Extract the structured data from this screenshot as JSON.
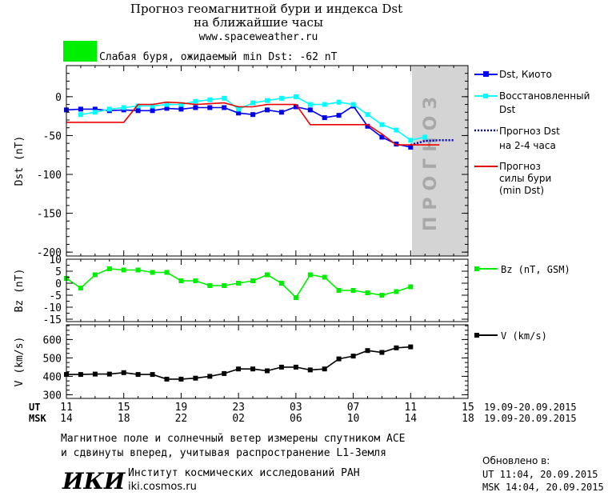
{
  "header": {
    "title_line1": "Прогноз геомагнитной бури и индекса Dst",
    "title_line2": "на ближайшие часы",
    "url": "www.spaceweather.ru",
    "status_text": "Слабая буря, ожидаемый min Dst: -62 nT",
    "status_color": "#00ee00"
  },
  "colors": {
    "dst_kyoto": "#0000ee",
    "dst_restored": "#00ffff",
    "forecast_dst": "#0000cc",
    "storm_forecast": "#ee0000",
    "bz": "#00ee00",
    "v": "#000000",
    "forecast_band": "#d4d4d4"
  },
  "chart_data": [
    {
      "type": "line",
      "panel": "dst",
      "ylabel": "Dst (nT)",
      "ylim": [
        -205,
        40
      ],
      "yticks": [
        0,
        -50,
        -100,
        -150,
        -200
      ],
      "ytick_labels": [
        "0",
        "-50",
        "-100",
        "-150",
        "-200"
      ],
      "x_unit": "hours from 11:00 UT 19.09.2015",
      "xlim": [
        0,
        28
      ],
      "forecast_region_label": "ПРОГНОЗ",
      "forecast_region_x": [
        24,
        28
      ],
      "series": [
        {
          "name": "Dst, Киото",
          "style": "line-square",
          "color": "#0000ee",
          "x": [
            0,
            1,
            2,
            3,
            4,
            5,
            6,
            7,
            8,
            9,
            10,
            11,
            12,
            13,
            14,
            15,
            16,
            17,
            18,
            19,
            20,
            21,
            22,
            23,
            24
          ],
          "y": [
            -17,
            -16,
            -16,
            -18,
            -17,
            -18,
            -18,
            -15,
            -16,
            -14,
            -14,
            -14,
            -21,
            -23,
            -17,
            -20,
            -13,
            -17,
            -27,
            -24,
            -12,
            -38,
            -52,
            -61,
            -65
          ]
        },
        {
          "name": "Восстановленный Dst",
          "style": "line-square",
          "color": "#00ffff",
          "x": [
            1,
            2,
            3,
            4,
            5,
            6,
            7,
            8,
            9,
            10,
            11,
            12,
            13,
            14,
            15,
            16,
            17,
            18,
            19,
            20,
            21,
            22,
            23,
            24,
            25
          ],
          "y": [
            -23,
            -20,
            -16,
            -14,
            -12,
            -12,
            -10,
            -10,
            -6,
            -4,
            -2,
            -16,
            -8,
            -5,
            -2,
            0,
            -10,
            -10,
            -7,
            -10,
            -23,
            -36,
            -43,
            -56,
            -52
          ]
        },
        {
          "name": "Прогноз Dst на 2-4 часа",
          "style": "dotted",
          "color": "#0000cc",
          "x": [
            24,
            25,
            26,
            27
          ],
          "y": [
            -62,
            -57,
            -56,
            -56
          ]
        },
        {
          "name": "Прогноз силы бури (min Dst)",
          "style": "step",
          "color": "#ee0000",
          "x": [
            0,
            4,
            5,
            6,
            7,
            8,
            9,
            10,
            11,
            12,
            13,
            14,
            15,
            16,
            17,
            18,
            19,
            20,
            21,
            22,
            23,
            24,
            25,
            26
          ],
          "y": [
            -33,
            -33,
            -10,
            -10,
            -7,
            -8,
            -10,
            -9,
            -8,
            -13,
            -13,
            -10,
            -10,
            -10,
            -36,
            -36,
            -36,
            -36,
            -36,
            -48,
            -62,
            -62,
            -62,
            -62
          ]
        }
      ]
    },
    {
      "type": "line",
      "panel": "bz",
      "ylabel": "Bz (nT)",
      "ylim": [
        -16,
        10
      ],
      "yticks": [
        10,
        5,
        0,
        -5,
        -10,
        -15
      ],
      "ytick_labels": [
        "10",
        "5",
        "0",
        "-5",
        "-10",
        "-15"
      ],
      "series": [
        {
          "name": "Bz (nT, GSM)",
          "color": "#00ee00",
          "x": [
            0,
            1,
            2,
            3,
            4,
            5,
            6,
            7,
            8,
            9,
            10,
            11,
            12,
            13,
            14,
            15,
            16,
            17,
            18,
            19,
            20,
            21,
            22,
            23,
            24,
            25
          ],
          "y": [
            2,
            -2,
            3.5,
            6,
            5.5,
            5.5,
            4.5,
            4.5,
            1,
            1,
            -1,
            -1,
            0,
            1,
            3.5,
            0,
            -6,
            3.5,
            2.5,
            -3,
            -3,
            -4,
            -5,
            -3.5,
            -1.5,
            null
          ]
        }
      ]
    },
    {
      "type": "line",
      "panel": "v",
      "ylabel": "V (km/s)",
      "ylim": [
        280,
        680
      ],
      "yticks": [
        300,
        400,
        500,
        600
      ],
      "ytick_labels": [
        "300",
        "400",
        "500",
        "600"
      ],
      "series": [
        {
          "name": "V (km/s)",
          "color": "#000000",
          "x": [
            0,
            1,
            2,
            3,
            4,
            5,
            6,
            7,
            8,
            9,
            10,
            11,
            12,
            13,
            14,
            15,
            16,
            17,
            18,
            19,
            20,
            21,
            22,
            23,
            24,
            25
          ],
          "y": [
            410,
            410,
            412,
            412,
            420,
            410,
            410,
            385,
            385,
            390,
            400,
            415,
            440,
            440,
            430,
            450,
            450,
            435,
            440,
            495,
            510,
            540,
            530,
            555,
            560,
            null
          ]
        }
      ]
    }
  ],
  "axis": {
    "ut_label": "UT",
    "msk_label": "MSK",
    "ut_ticks": [
      "11",
      "15",
      "19",
      "23",
      "03",
      "07",
      "11",
      "15"
    ],
    "msk_ticks": [
      "14",
      "18",
      "22",
      "02",
      "06",
      "10",
      "14",
      "18"
    ],
    "ut_range": "19.09-20.09.2015",
    "msk_range": "19.09-20.09.2015"
  },
  "legend": {
    "dst_kyoto": "Dst, Киото",
    "restored_line1": "Восстановленный",
    "restored_line2": "Dst",
    "forecast_line1": "Прогноз Dst",
    "forecast_line2": "на 2-4 часа",
    "storm_line1": "Прогноз",
    "storm_line2": "силы бури",
    "storm_line3": "(min Dst)",
    "bz": "Bz (nT, GSM)",
    "v": "V (km/s)"
  },
  "footer": {
    "note_line1": "Магнитное поле и солнечный ветер измерены спутником ACE",
    "note_line2": "и сдвинуты вперед, учитывая распространение L1-Земля",
    "logo_text": "ИКИ",
    "institute": "Институт космических исследований РАН",
    "institute_url": "iki.cosmos.ru",
    "updated_label": "Обновлено в:",
    "updated_ut": "UT   11:04, 20.09.2015",
    "updated_msk": "MSK 14:04, 20.09.2015"
  }
}
